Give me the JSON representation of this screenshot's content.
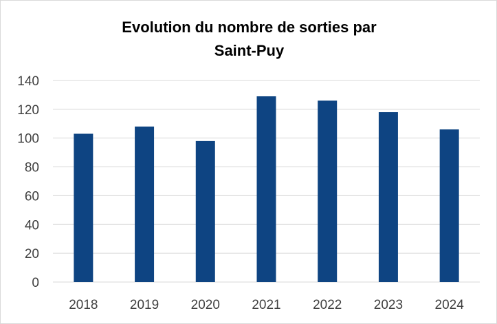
{
  "chart_data": {
    "type": "bar",
    "title_lines": [
      "Evolution du nombre de sorties par",
      "Saint-Puy"
    ],
    "categories": [
      "2018",
      "2019",
      "2020",
      "2021",
      "2022",
      "2023",
      "2024"
    ],
    "values": [
      103,
      108,
      98,
      129,
      126,
      118,
      106
    ],
    "ylim": [
      0,
      140
    ],
    "y_ticks": [
      0,
      20,
      40,
      60,
      80,
      100,
      120,
      140
    ],
    "grid": true,
    "legend": "none",
    "bar_color": "#0e4482",
    "grid_color": "#d9d9d9"
  }
}
